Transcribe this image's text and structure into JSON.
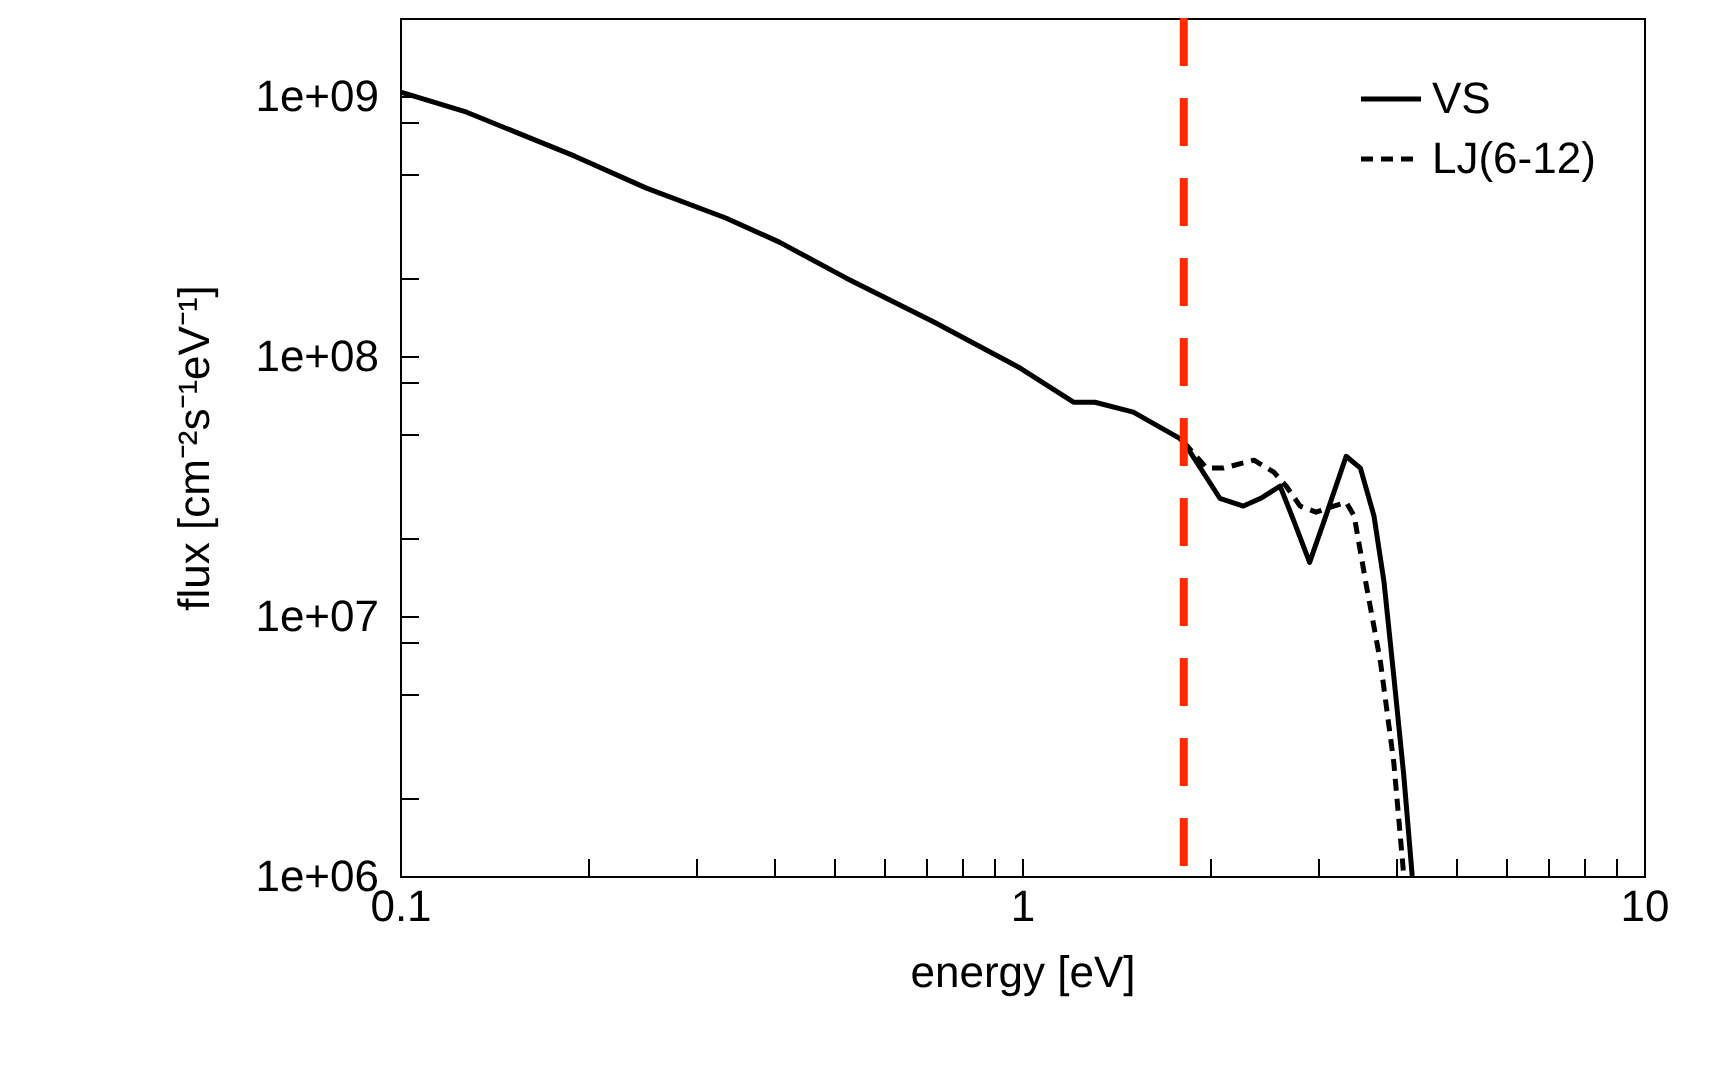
{
  "chart_data": {
    "type": "line",
    "xlabel": "energy [eV]",
    "ylabel": "flux [cm⁻²s⁻¹eV⁻¹]",
    "log": "xy",
    "grid": false,
    "legend": "top right",
    "marker": "none",
    "xlim": [
      0.1,
      10
    ],
    "ylim": [
      1000000,
      2000000000
    ],
    "xticks": [
      0.1,
      {
        "value": 0.2,
        "label": null
      },
      {
        "value": 0.3,
        "label": null
      },
      {
        "value": 0.4,
        "label": null
      },
      {
        "value": 0.5,
        "label": null
      },
      {
        "value": 0.6,
        "label": null
      },
      {
        "value": 0.7,
        "label": null
      },
      {
        "value": 0.8,
        "label": null
      },
      {
        "value": 0.9,
        "label": null
      },
      1,
      {
        "value": 2,
        "label": null
      },
      {
        "value": 3,
        "label": null
      },
      {
        "value": 4,
        "label": null
      },
      {
        "value": 5,
        "label": null
      },
      {
        "value": 6,
        "label": null
      },
      {
        "value": 7,
        "label": null
      },
      {
        "value": 8,
        "label": null
      },
      {
        "value": 9,
        "label": null
      },
      10
    ],
    "yticks": [
      {
        "value": 1000000,
        "label": "1e+06"
      },
      {
        "value": 2000000,
        "label": null
      },
      {
        "value": 5000000,
        "label": null
      },
      {
        "value": 8000000,
        "label": null
      },
      {
        "value": 10000000,
        "label": "1e+07"
      },
      {
        "value": 20000000,
        "label": null
      },
      {
        "value": 50000000,
        "label": null
      },
      {
        "value": 80000000,
        "label": null
      },
      {
        "value": 100000000,
        "label": "1e+08"
      },
      {
        "value": 200000000,
        "label": null
      },
      {
        "value": 500000000,
        "label": null
      },
      {
        "value": 800000000,
        "label": null
      },
      {
        "value": 1000000000,
        "label": "1e+09"
      }
    ],
    "series": [
      {
        "name": "VS",
        "color": "#000000",
        "line_style": "solid",
        "x": [
          0.1,
          0.128,
          0.191,
          0.249,
          0.334,
          0.408,
          0.521,
          0.723,
          0.993,
          1.21,
          1.31,
          1.51,
          1.79,
          1.82,
          2.08,
          2.27,
          2.42,
          2.6,
          2.74,
          2.9,
          3.08,
          3.32,
          3.5,
          3.68,
          3.82,
          3.96,
          4.11,
          4.24
        ],
        "values": [
          1040000000,
          868000000,
          588000000,
          443000000,
          340000000,
          274000000,
          200000000,
          135000000,
          90000000,
          66500000,
          66500000,
          60900000,
          48400000,
          46700000,
          28400000,
          26500000,
          28400000,
          31600000,
          23000000,
          16100000,
          24300000,
          41200000,
          37100000,
          24300000,
          13500000,
          5880000,
          2430000,
          1000000
        ]
      },
      {
        "name": "LJ(6-12)",
        "color": "#000000",
        "line_style": "dashed",
        "x": [
          1.82,
          1.98,
          2.11,
          2.36,
          2.54,
          2.66,
          2.8,
          2.97,
          3.17,
          3.32,
          3.42,
          3.57,
          3.77,
          3.96,
          4.11
        ],
        "values": [
          46700000,
          37100000,
          37100000,
          39800000,
          35800000,
          31600000,
          26500000,
          25100000,
          26500000,
          27400000,
          24300000,
          13500000,
          6650000,
          2740000,
          1000000
        ]
      }
    ],
    "ref_lines": [
      {
        "axis": "x",
        "value": 1.82,
        "color": "#ff2a00",
        "line_style": "dashed"
      }
    ]
  }
}
